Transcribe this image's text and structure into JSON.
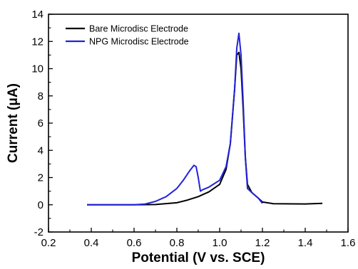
{
  "chart_data": {
    "type": "line",
    "xlabel": "Potential (V vs. SCE)",
    "ylabel": "Current (μA)",
    "xlim": [
      0.2,
      1.6
    ],
    "ylim": [
      -2,
      14
    ],
    "x_ticks": [
      "0.2",
      "0.4",
      "0.6",
      "0.8",
      "1.0",
      "1.2",
      "1.4",
      "1.6"
    ],
    "y_ticks": [
      "-2",
      "0",
      "2",
      "4",
      "6",
      "8",
      "10",
      "12",
      "14"
    ],
    "grid": false,
    "legend_position": "top-left",
    "series": [
      {
        "name": "Bare Microdisc Electrode",
        "color": "#000000",
        "x": [
          0.38,
          0.6,
          0.7,
          0.8,
          0.85,
          0.9,
          0.95,
          1.0,
          1.03,
          1.05,
          1.07,
          1.08,
          1.09,
          1.1,
          1.11,
          1.12,
          1.13,
          1.15,
          1.18,
          1.2,
          1.25,
          1.3,
          1.4,
          1.48
        ],
        "y": [
          0.0,
          0.0,
          0.02,
          0.15,
          0.35,
          0.6,
          0.95,
          1.5,
          2.6,
          4.5,
          8.5,
          11.0,
          11.2,
          10.0,
          7.0,
          3.5,
          1.5,
          0.9,
          0.5,
          0.2,
          0.08,
          0.07,
          0.06,
          0.1
        ]
      },
      {
        "name": "NPG Microdisc Electrode",
        "color": "#2323d8",
        "x": [
          0.38,
          0.6,
          0.65,
          0.7,
          0.75,
          0.8,
          0.83,
          0.86,
          0.88,
          0.89,
          0.9,
          0.91,
          0.92,
          0.95,
          1.0,
          1.03,
          1.05,
          1.07,
          1.08,
          1.09,
          1.1,
          1.11,
          1.12,
          1.13,
          1.15,
          1.18,
          1.2
        ],
        "y": [
          0.0,
          0.0,
          0.05,
          0.25,
          0.6,
          1.2,
          1.8,
          2.5,
          2.9,
          2.8,
          2.0,
          1.0,
          1.1,
          1.3,
          1.8,
          2.8,
          4.5,
          8.5,
          11.5,
          12.6,
          11.0,
          7.5,
          3.5,
          1.2,
          0.9,
          0.5,
          0.1
        ]
      }
    ]
  }
}
